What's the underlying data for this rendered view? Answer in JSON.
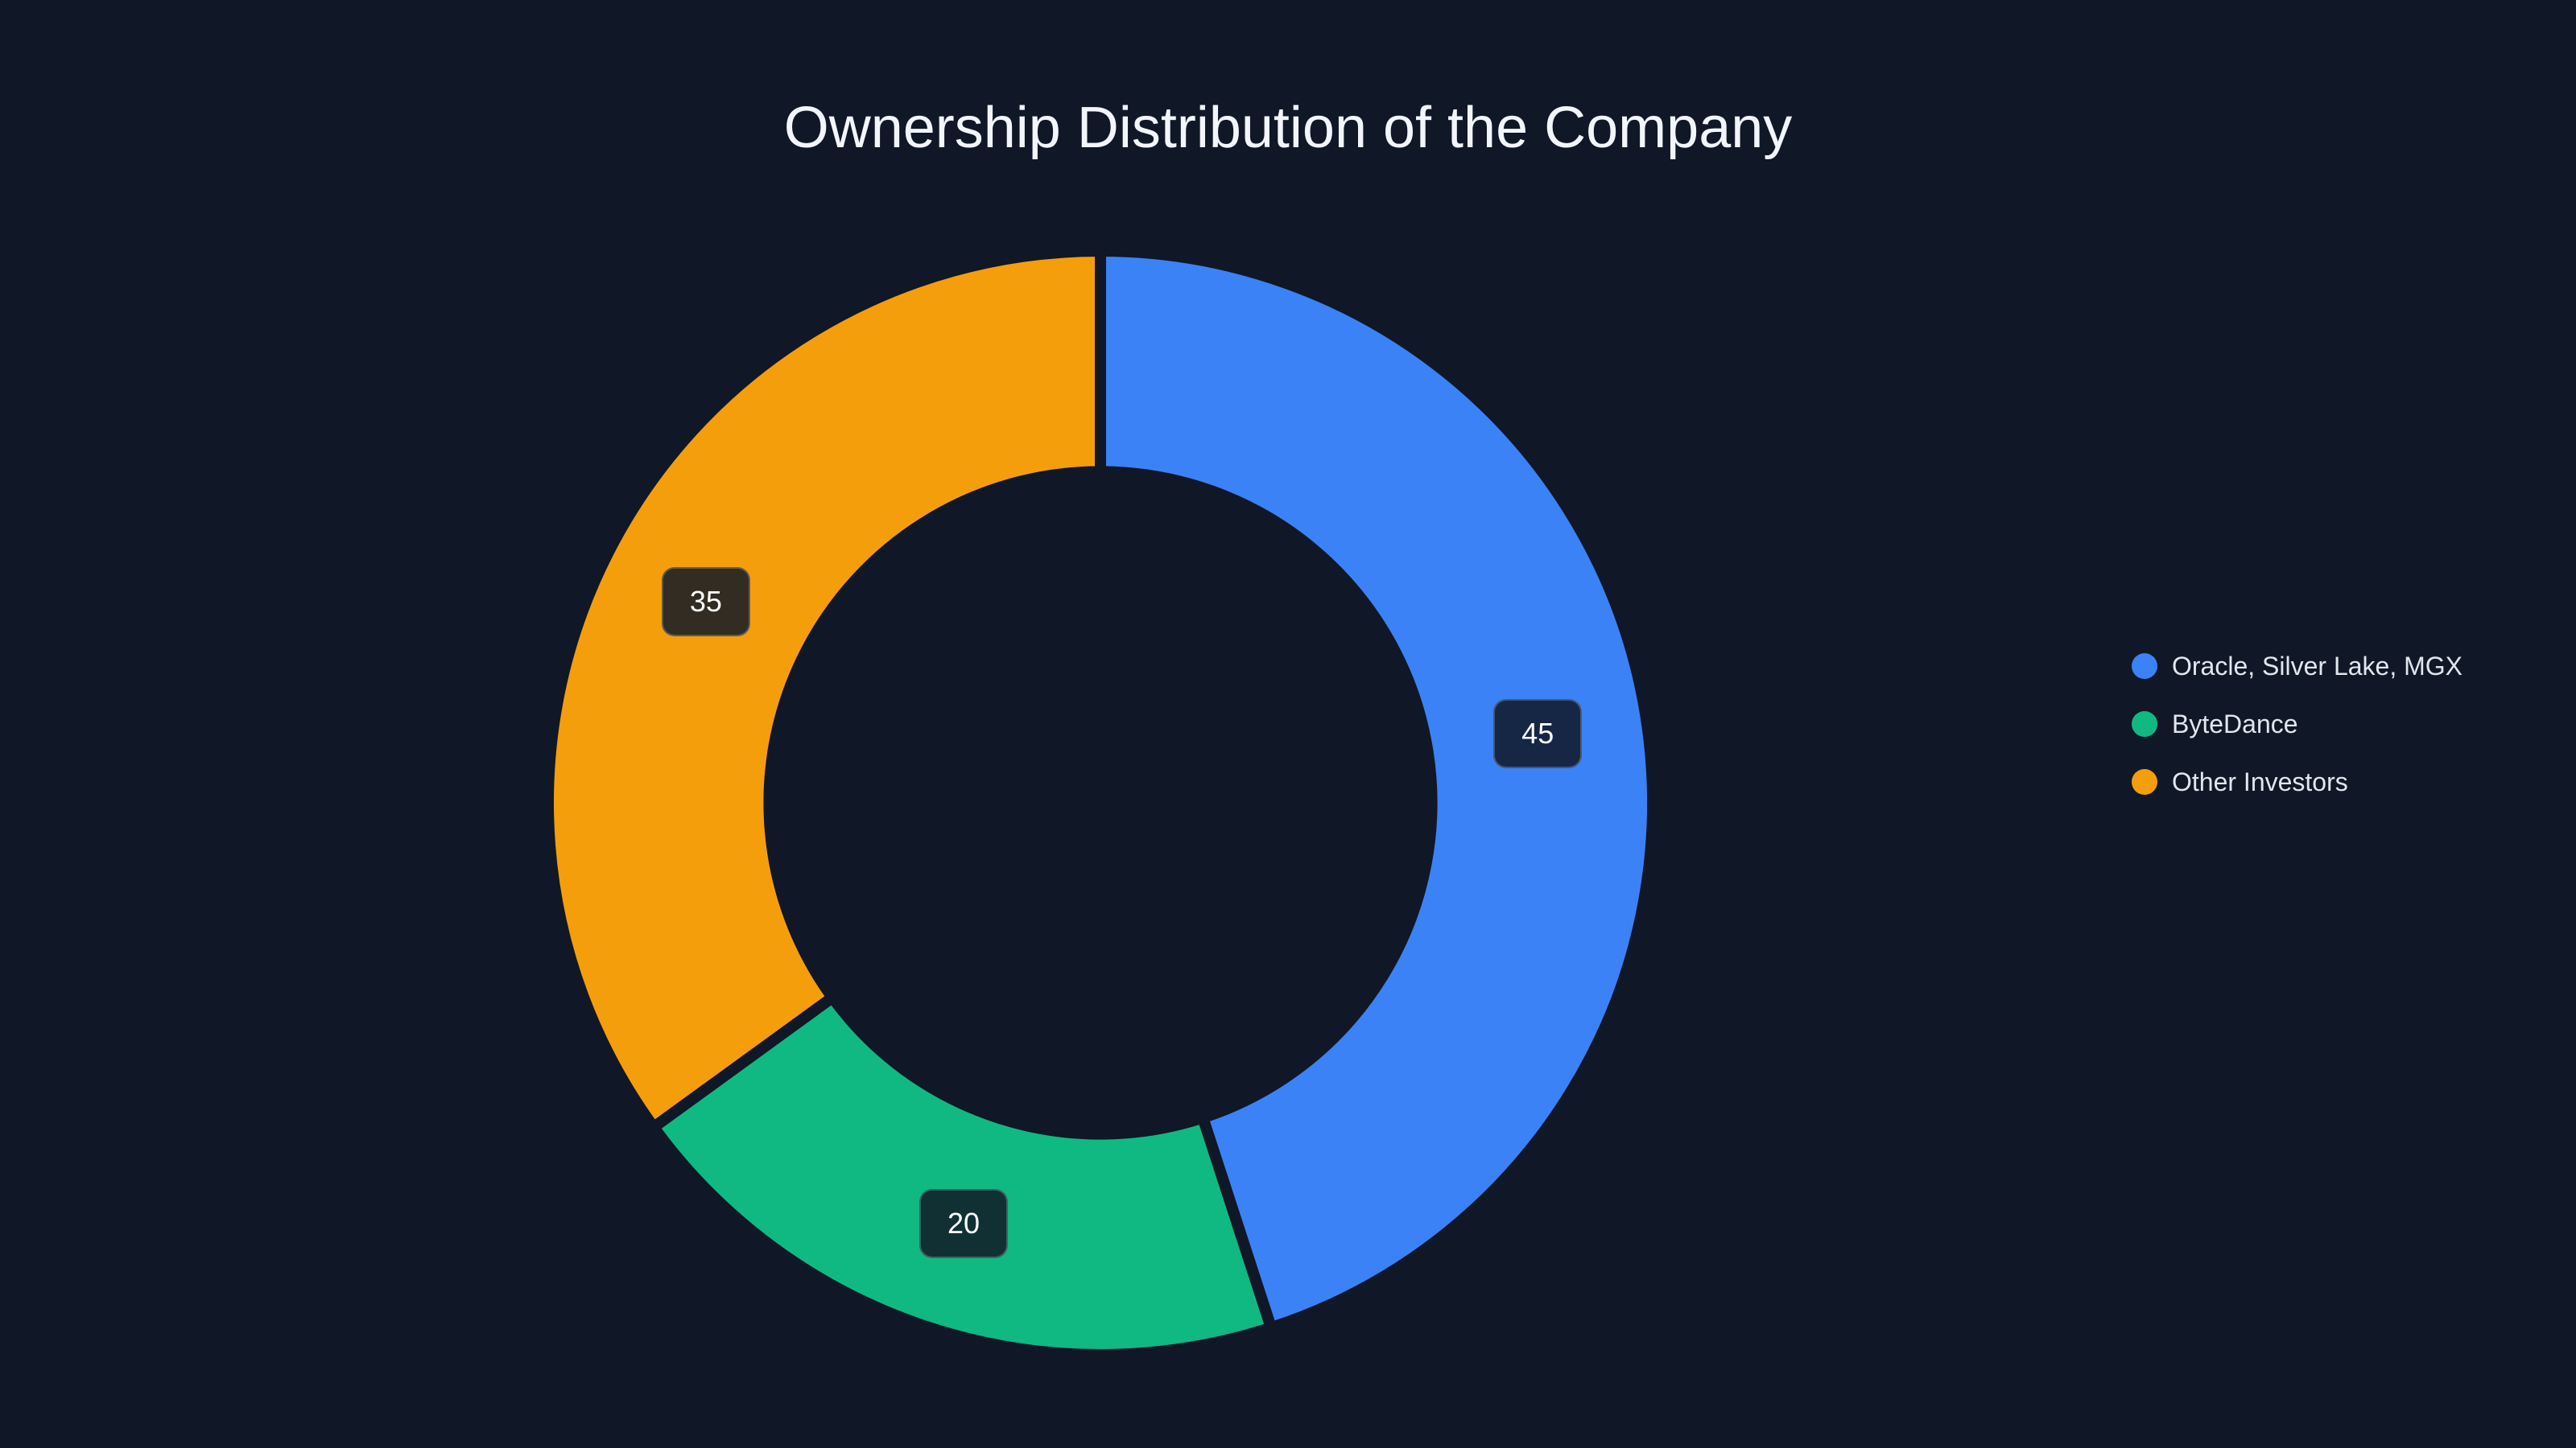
{
  "colors": {
    "background": "#101727",
    "title_text": "#f2f5fa",
    "legend_text": "#e2e6ed",
    "value_chip_bg": "rgba(16,23,39,0.85)",
    "value_chip_border": "rgba(255,255,255,0.22)",
    "value_chip_text": "#ffffff"
  },
  "chart_data": {
    "type": "pie",
    "subtype": "donut",
    "title": "Ownership Distribution of the Company",
    "labels": [
      "Oracle, Silver Lake, MGX",
      "ByteDance",
      "Other Investors"
    ],
    "values": [
      45,
      20,
      35
    ],
    "value_labels": [
      "45",
      "20",
      "35"
    ],
    "slice_colors": [
      "#3b82f6",
      "#10b981",
      "#f59e0b"
    ],
    "hole_ratio": 0.6,
    "rotation_deg": 0,
    "direction": "clockwise",
    "legend_position": "right-middle",
    "grid": false
  }
}
